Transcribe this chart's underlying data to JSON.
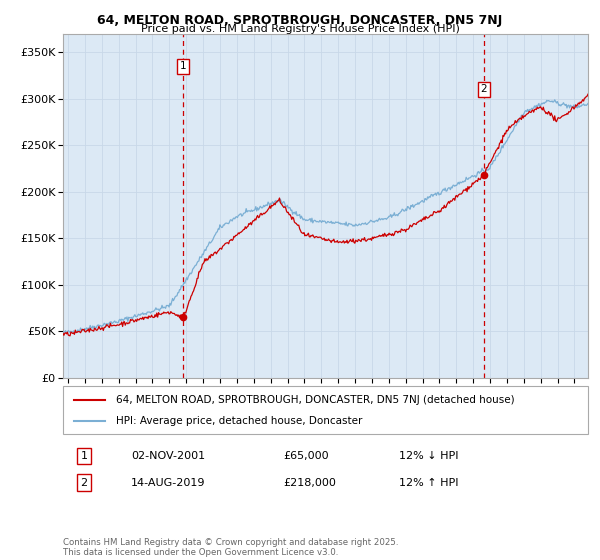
{
  "title_line1": "64, MELTON ROAD, SPROTBROUGH, DONCASTER, DN5 7NJ",
  "title_line2": "Price paid vs. HM Land Registry's House Price Index (HPI)",
  "ylabel_ticks": [
    "£0",
    "£50K",
    "£100K",
    "£150K",
    "£200K",
    "£250K",
    "£300K",
    "£350K"
  ],
  "ytick_values": [
    0,
    50000,
    100000,
    150000,
    200000,
    250000,
    300000,
    350000
  ],
  "ylim": [
    0,
    370000
  ],
  "xlim_start": 1994.7,
  "xlim_end": 2025.8,
  "transaction1": {
    "date_label": "02-NOV-2001",
    "price": "£65,000",
    "pct": "12% ↓ HPI",
    "marker_x": 2001.83,
    "num": "1"
  },
  "transaction2": {
    "date_label": "14-AUG-2019",
    "price": "£218,000",
    "pct": "12% ↑ HPI",
    "marker_x": 2019.62,
    "num": "2"
  },
  "line_color_red": "#cc0000",
  "line_color_blue": "#7bafd4",
  "grid_color": "#c8d8e8",
  "background_color": "#dce9f5",
  "legend_label_red": "64, MELTON ROAD, SPROTBROUGH, DONCASTER, DN5 7NJ (detached house)",
  "legend_label_blue": "HPI: Average price, detached house, Doncaster",
  "footnote": "Contains HM Land Registry data © Crown copyright and database right 2025.\nThis data is licensed under the Open Government Licence v3.0.",
  "sale1_x": 2001.83,
  "sale1_y": 65000,
  "sale2_x": 2019.62,
  "sale2_y": 218000,
  "marker1_y": 335000,
  "marker2_y": 310000
}
